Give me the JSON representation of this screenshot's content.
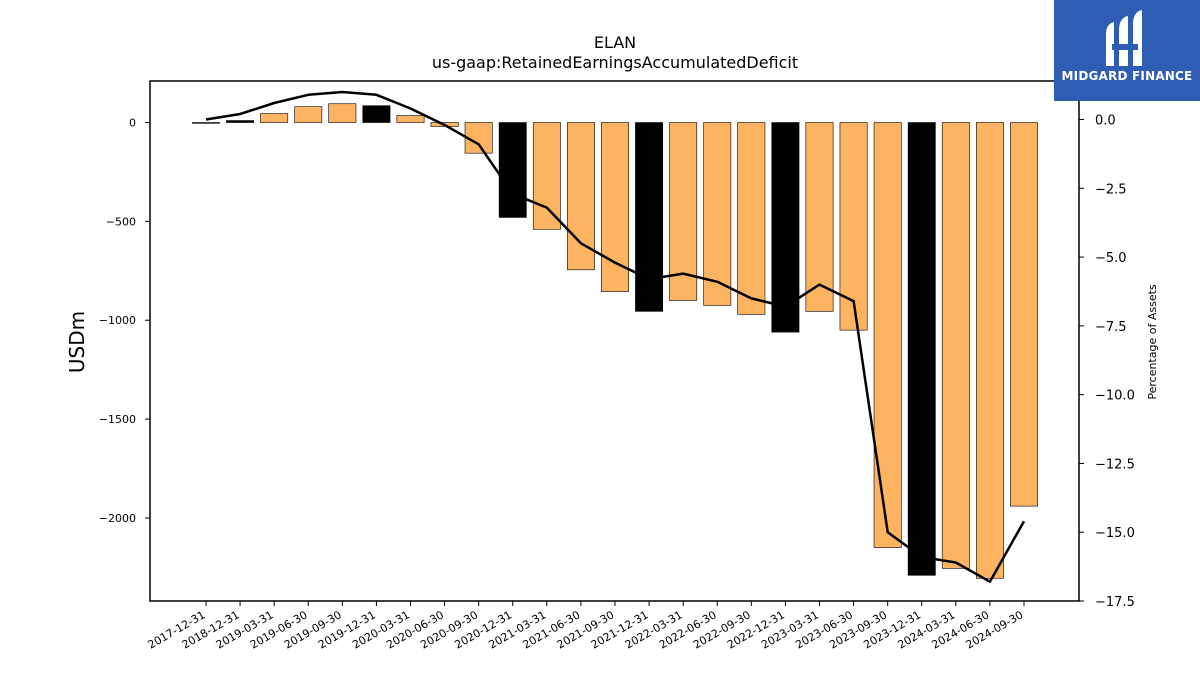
{
  "chart_data": {
    "type": "bar+line",
    "title": "ELAN",
    "subtitle": "us-gaap:RetainedEarningsAccumulatedDeficit",
    "ylabel": "USDm",
    "y2label": "Percentage of Assets",
    "ylim": [
      -2420,
      210
    ],
    "y2lim": [
      -17.5,
      1.4
    ],
    "yticks": [
      0,
      -500,
      -1000,
      -1500,
      -2000
    ],
    "y2ticks": [
      0.0,
      -2.5,
      -5.0,
      -7.5,
      -10.0,
      -12.5,
      -15.0,
      -17.5
    ],
    "categories": [
      "2017-12-31",
      "2018-12-31",
      "2019-03-31",
      "2019-06-30",
      "2019-09-30",
      "2019-12-31",
      "2020-03-31",
      "2020-06-30",
      "2020-09-30",
      "2020-12-31",
      "2021-03-31",
      "2021-06-30",
      "2021-09-30",
      "2021-12-31",
      "2022-03-31",
      "2022-06-30",
      "2022-09-30",
      "2022-12-31",
      "2023-03-31",
      "2023-06-30",
      "2023-09-30",
      "2023-12-31",
      "2024-03-31",
      "2024-06-30",
      "2024-09-30"
    ],
    "series": [
      {
        "kind": "bar",
        "values": [
          0,
          10,
          45,
          80,
          95,
          85,
          35,
          -20,
          -155,
          -480,
          -540,
          -745,
          -855,
          -955,
          -900,
          -925,
          -970,
          -1060,
          -955,
          -1050,
          -2150,
          -2290,
          -2255,
          -2305,
          -1940
        ]
      },
      {
        "kind": "line",
        "values": [
          0.0,
          0.2,
          0.6,
          0.9,
          1.0,
          0.9,
          0.4,
          -0.2,
          -0.9,
          -2.7,
          -3.2,
          -4.5,
          -5.2,
          -5.8,
          -5.6,
          -5.9,
          -6.5,
          -6.8,
          -6.0,
          -6.6,
          -15.0,
          -15.9,
          -16.1,
          -16.8,
          -14.6
        ]
      }
    ],
    "bar_colors": {
      "quarter": "#fdb462",
      "year_end": "#000000"
    },
    "line_color": "#000000"
  },
  "logo": {
    "text": "MIDGARD FINANCE",
    "bg": "#2f5db4"
  }
}
